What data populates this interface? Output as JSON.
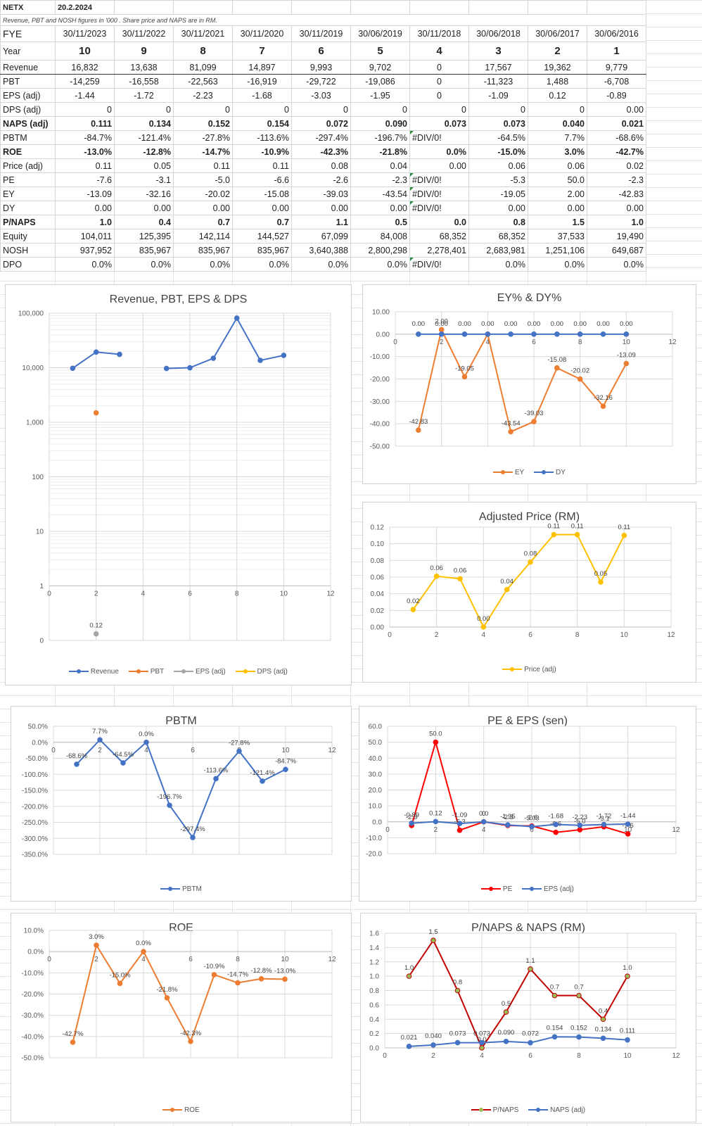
{
  "sheet": {
    "ticker": "NETX",
    "date": "20.2.2024",
    "note": "Revenue, PBT and  NOSH  figures in '000  .  Share price  and NAPS are in  RM.",
    "fye_label": "FYE",
    "fye_dates": [
      "30/11/2023",
      "30/11/2022",
      "30/11/2021",
      "30/11/2020",
      "30/11/2019",
      "30/06/2019",
      "30/11/2018",
      "30/06/2018",
      "30/06/2017",
      "30/06/2016"
    ],
    "rows": [
      {
        "label": "Year",
        "values": [
          "10",
          "9",
          "8",
          "7",
          "6",
          "5",
          "4",
          "3",
          "2",
          "1"
        ]
      },
      {
        "label": "Revenue",
        "values": [
          "16,832",
          "13,638",
          "81,099",
          "14,897",
          "9,993",
          "9,702",
          "0",
          "17,567",
          "19,362",
          "9,779"
        ]
      },
      {
        "label": "PBT",
        "values": [
          "-14,259",
          "-16,558",
          "-22,563",
          "-16,919",
          "-29,722",
          "-19,086",
          "0",
          "-11,323",
          "1,488",
          "-6,708"
        ]
      },
      {
        "label": "EPS (adj)",
        "values": [
          "-1.44",
          "-1.72",
          "-2.23",
          "-1.68",
          "-3.03",
          "-1.95",
          "0",
          "-1.09",
          "0.12",
          "-0.89"
        ]
      },
      {
        "label": "DPS (adj)",
        "values": [
          "0",
          "0",
          "0",
          "0",
          "0",
          "0",
          "0",
          "0",
          "0",
          "0.00"
        ]
      },
      {
        "label": "NAPS (adj)",
        "values": [
          "0.111",
          "0.134",
          "0.152",
          "0.154",
          "0.072",
          "0.090",
          "0.073",
          "0.073",
          "0.040",
          "0.021"
        ]
      },
      {
        "label": "PBTM",
        "values": [
          "-84.7%",
          "-121.4%",
          "-27.8%",
          "-113.6%",
          "-297.4%",
          "-196.7%",
          "#DIV/0!",
          "-64.5%",
          "7.7%",
          "-68.6%"
        ]
      },
      {
        "label": "ROE",
        "values": [
          "-13.0%",
          "-12.8%",
          "-14.7%",
          "-10.9%",
          "-42.3%",
          "-21.8%",
          "0.0%",
          "-15.0%",
          "3.0%",
          "-42.7%"
        ]
      },
      {
        "label": "Price (adj)",
        "values": [
          "0.11",
          "0.05",
          "0.11",
          "0.11",
          "0.08",
          "0.04",
          "0.00",
          "0.06",
          "0.06",
          "0.02"
        ]
      },
      {
        "label": "PE",
        "values": [
          "-7.6",
          "-3.1",
          "-5.0",
          "-6.6",
          "-2.6",
          "-2.3",
          "#DIV/0!",
          "-5.3",
          "50.0",
          "-2.3"
        ]
      },
      {
        "label": "EY",
        "values": [
          "-13.09",
          "-32.16",
          "-20.02",
          "-15.08",
          "-39.03",
          "-43.54",
          "#DIV/0!",
          "-19.05",
          "2.00",
          "-42.83"
        ]
      },
      {
        "label": "DY",
        "values": [
          "0.00",
          "0.00",
          "0.00",
          "0.00",
          "0.00",
          "0.00",
          "#DIV/0!",
          "0.00",
          "0.00",
          "0.00"
        ]
      },
      {
        "label": "P/NAPS",
        "values": [
          "1.0",
          "0.4",
          "0.7",
          "0.7",
          "1.1",
          "0.5",
          "0.0",
          "0.8",
          "1.5",
          "1.0"
        ]
      },
      {
        "label": "Equity",
        "values": [
          "104,011",
          "125,395",
          "142,114",
          "144,527",
          "67,099",
          "84,008",
          "68,352",
          "68,352",
          "37,533",
          "19,490"
        ]
      },
      {
        "label": "NOSH",
        "values": [
          "937,952",
          "835,967",
          "835,967",
          "835,967",
          "3,640,388",
          "2,800,298",
          "2,278,401",
          "2,683,981",
          "1,251,106",
          "649,687"
        ]
      },
      {
        "label": "DPO",
        "values": [
          "0.0%",
          "0.0%",
          "0.0%",
          "0.0%",
          "0.0%",
          "0.0%",
          "#DIV/0!",
          "0.0%",
          "0.0%",
          "0.0%"
        ]
      }
    ]
  },
  "chart_data": [
    {
      "id": "rev",
      "type": "scatter",
      "title": "Revenue,  PBT, EPS & DPS",
      "log_y": true,
      "xlim": [
        0,
        12
      ],
      "xticks": [
        0,
        2,
        4,
        6,
        8,
        10,
        12
      ],
      "yticks": [
        0,
        1,
        10,
        100,
        1000,
        10000,
        100000
      ],
      "ytick_labels": [
        "0",
        "1",
        "10",
        "100",
        "1,000",
        "10,000",
        "100,000"
      ],
      "series": [
        {
          "name": "Revenue",
          "color": "#4472C4",
          "points": [
            [
              1,
              9779
            ],
            [
              2,
              19362
            ],
            [
              3,
              17567
            ],
            [
              4,
              null
            ],
            [
              5,
              9702
            ],
            [
              6,
              9993
            ],
            [
              7,
              14897
            ],
            [
              8,
              81099
            ],
            [
              9,
              13638
            ],
            [
              10,
              16832
            ]
          ]
        },
        {
          "name": "PBT",
          "color": "#ED7D31",
          "points": [
            [
              2,
              1488
            ]
          ]
        },
        {
          "name": "EPS (adj)",
          "color": "#A5A5A5",
          "points": [
            [
              2,
              0.12
            ]
          ],
          "labels": [
            "0.12"
          ]
        },
        {
          "name": "DPS (adj)",
          "color": "#FFC000",
          "points": []
        }
      ]
    },
    {
      "id": "ey",
      "type": "line",
      "title": "EY% & DY%",
      "xlim": [
        0,
        12
      ],
      "xticks": [
        0,
        2,
        4,
        6,
        8,
        10,
        12
      ],
      "ylim": [
        -50,
        10
      ],
      "yticks": [
        -50,
        -40,
        -30,
        -20,
        -10,
        0,
        10
      ],
      "yfmt": "fixed2",
      "series": [
        {
          "name": "EY",
          "color": "#ED7D31",
          "points": [
            [
              1,
              -42.83
            ],
            [
              2,
              2.0
            ],
            [
              3,
              -19.05
            ],
            [
              4,
              0
            ],
            [
              5,
              -43.54
            ],
            [
              6,
              -39.03
            ],
            [
              7,
              -15.08
            ],
            [
              8,
              -20.02
            ],
            [
              9,
              -32.16
            ],
            [
              10,
              -13.09
            ]
          ],
          "labels": [
            "-42.83",
            "2.00",
            "-19.05",
            "",
            "-43.54",
            "-39.03",
            "-15.08",
            "-20.02",
            "-32.16",
            "-13.09"
          ]
        },
        {
          "name": "DY",
          "color": "#4472C4",
          "points": [
            [
              1,
              0
            ],
            [
              2,
              0
            ],
            [
              3,
              0
            ],
            [
              4,
              0
            ],
            [
              5,
              0
            ],
            [
              6,
              0
            ],
            [
              7,
              0
            ],
            [
              8,
              0
            ],
            [
              9,
              0
            ],
            [
              10,
              0
            ]
          ],
          "labels": [
            "0.00",
            "0.00",
            "0.00",
            "0.00",
            "0.00",
            "0.00",
            "0.00",
            "0.00",
            "0.00",
            "0.00"
          ]
        }
      ]
    },
    {
      "id": "price",
      "type": "line",
      "title": "Adjusted Price (RM)",
      "xlim": [
        0,
        12
      ],
      "xticks": [
        0,
        2,
        4,
        6,
        8,
        10,
        12
      ],
      "ylim": [
        0,
        0.12
      ],
      "yticks": [
        0,
        0.02,
        0.04,
        0.06,
        0.08,
        0.1,
        0.12
      ],
      "yfmt": "fixed2",
      "series": [
        {
          "name": "Price (adj)",
          "color": "#FFC000",
          "points": [
            [
              1,
              0.021
            ],
            [
              2,
              0.061
            ],
            [
              3,
              0.058
            ],
            [
              4,
              0.0
            ],
            [
              5,
              0.045
            ],
            [
              6,
              0.078
            ],
            [
              7,
              0.111
            ],
            [
              8,
              0.111
            ],
            [
              9,
              0.054
            ],
            [
              10,
              0.11
            ]
          ],
          "labels": [
            "0.02",
            "0.06",
            "0.06",
            "0.00",
            "0.04",
            "0.08",
            "0.11",
            "0.11",
            "0.05",
            "0.11"
          ]
        }
      ]
    },
    {
      "id": "pbtm",
      "type": "line",
      "title": "PBTM",
      "xlim": [
        0,
        12
      ],
      "xticks": [
        0,
        2,
        4,
        6,
        8,
        10,
        12
      ],
      "ylim": [
        -350,
        50
      ],
      "yticks": [
        -350,
        -300,
        -250,
        -200,
        -150,
        -100,
        -50,
        0,
        50
      ],
      "yfmt": "pct1",
      "series": [
        {
          "name": "PBTM",
          "color": "#4472C4",
          "points": [
            [
              1,
              -68.6
            ],
            [
              2,
              7.7
            ],
            [
              3,
              -64.5
            ],
            [
              4,
              0
            ],
            [
              5,
              -196.7
            ],
            [
              6,
              -297.4
            ],
            [
              7,
              -113.6
            ],
            [
              8,
              -27.8
            ],
            [
              9,
              -121.4
            ],
            [
              10,
              -84.7
            ]
          ],
          "labels": [
            "-68.6%",
            "7.7%",
            "-64.5%",
            "0.0%",
            "-196.7%",
            "-297.4%",
            "-113.6%",
            "-27.8%",
            "-121.4%",
            "-84.7%"
          ]
        }
      ]
    },
    {
      "id": "pe",
      "type": "line",
      "title": "PE & EPS (sen)",
      "xlim": [
        0,
        12
      ],
      "xticks": [
        0,
        2,
        4,
        6,
        8,
        10,
        12
      ],
      "ylim": [
        -20,
        60
      ],
      "yticks": [
        -20,
        -10,
        0,
        10,
        20,
        30,
        40,
        50,
        60
      ],
      "yfmt": "fixed1",
      "series": [
        {
          "name": "PE",
          "color": "#FF0000",
          "points": [
            [
              1,
              -2.3
            ],
            [
              2,
              50.0
            ],
            [
              3,
              -5.3
            ],
            [
              4,
              0
            ],
            [
              5,
              -2.3
            ],
            [
              6,
              -2.6
            ],
            [
              7,
              -6.6
            ],
            [
              8,
              -5.0
            ],
            [
              9,
              -3.1
            ],
            [
              10,
              -7.6
            ]
          ],
          "labels": [
            "-2.3",
            "50.0",
            "-5.3",
            "0.0",
            "-2.3",
            "-2.6",
            "-6.6",
            "-5.0",
            "-3.1",
            "-7.6"
          ]
        },
        {
          "name": "EPS (adj)",
          "color": "#4472C4",
          "points": [
            [
              1,
              -0.89
            ],
            [
              2,
              0.12
            ],
            [
              3,
              -1.09
            ],
            [
              4,
              0
            ],
            [
              5,
              -1.95
            ],
            [
              6,
              -3.03
            ],
            [
              7,
              -1.68
            ],
            [
              8,
              -2.23
            ],
            [
              9,
              -1.72
            ],
            [
              10,
              -1.44
            ]
          ],
          "labels": [
            "-0.89",
            "0.12",
            "-1.09",
            "0",
            "-1.95",
            "-3.03",
            "-1.68",
            "-2.23",
            "-1.72",
            "-1.44"
          ]
        }
      ]
    },
    {
      "id": "roe",
      "type": "line",
      "title": "ROE",
      "xlim": [
        0,
        12
      ],
      "xticks": [
        0,
        2,
        4,
        6,
        8,
        10,
        12
      ],
      "ylim": [
        -50,
        10
      ],
      "yticks": [
        -50,
        -40,
        -30,
        -20,
        -10,
        0,
        10
      ],
      "yfmt": "pct1",
      "series": [
        {
          "name": "ROE",
          "color": "#ED7D31",
          "points": [
            [
              1,
              -42.7
            ],
            [
              2,
              3.0
            ],
            [
              3,
              -15.0
            ],
            [
              4,
              0
            ],
            [
              5,
              -21.8
            ],
            [
              6,
              -42.3
            ],
            [
              7,
              -10.9
            ],
            [
              8,
              -14.7
            ],
            [
              9,
              -12.8
            ],
            [
              10,
              -13.0
            ]
          ],
          "labels": [
            "-42.7%",
            "3.0%",
            "-15.0%",
            "0.0%",
            "-21.8%",
            "-42.3%",
            "-10.9%",
            "-14.7%",
            "-12.8%",
            "-13.0%"
          ]
        }
      ]
    },
    {
      "id": "pnaps",
      "type": "line",
      "title": "P/NAPS & NAPS (RM)",
      "xlim": [
        0,
        12
      ],
      "xticks": [
        0,
        2,
        4,
        6,
        8,
        10,
        12
      ],
      "ylim": [
        0,
        1.6
      ],
      "yticks": [
        0,
        0.2,
        0.4,
        0.6,
        0.8,
        1.0,
        1.2,
        1.4,
        1.6
      ],
      "yfmt": "fixed1",
      "series": [
        {
          "name": "P/NAPS",
          "color": "#C00000",
          "marker": "#9BBB59",
          "points": [
            [
              1,
              1.0
            ],
            [
              2,
              1.5
            ],
            [
              3,
              0.8
            ],
            [
              4,
              0.0
            ],
            [
              5,
              0.5
            ],
            [
              6,
              1.1
            ],
            [
              7,
              0.73
            ],
            [
              8,
              0.73
            ],
            [
              9,
              0.4
            ],
            [
              10,
              1.0
            ]
          ],
          "labels": [
            "1.0",
            "1.5",
            "0.8",
            "0.0",
            "0.5",
            "1.1",
            "0.7",
            "0.7",
            "0.4",
            "1.0"
          ]
        },
        {
          "name": "NAPS (adj)",
          "color": "#4472C4",
          "points": [
            [
              1,
              0.021
            ],
            [
              2,
              0.04
            ],
            [
              3,
              0.073
            ],
            [
              4,
              0.073
            ],
            [
              5,
              0.09
            ],
            [
              6,
              0.072
            ],
            [
              7,
              0.154
            ],
            [
              8,
              0.152
            ],
            [
              9,
              0.134
            ],
            [
              10,
              0.111
            ]
          ],
          "labels": [
            "0.021",
            "0.040",
            "0.073",
            "0.073",
            "0.090",
            "0.072",
            "0.154",
            "0.152",
            "0.134",
            "0.111"
          ]
        }
      ]
    }
  ]
}
